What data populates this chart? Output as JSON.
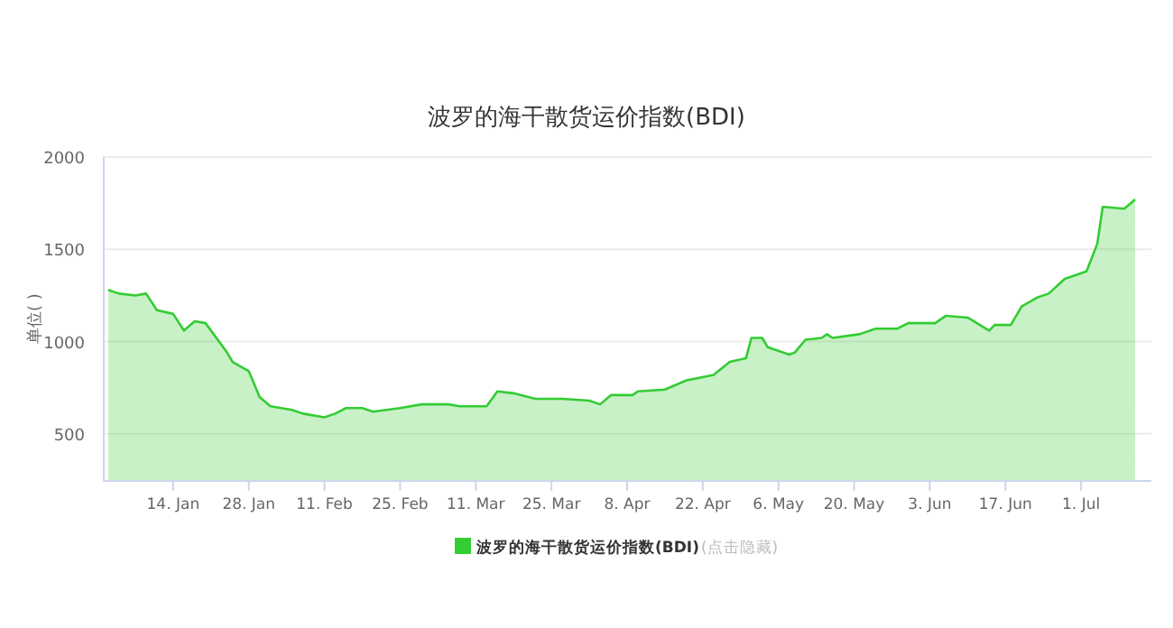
{
  "chart_data": {
    "type": "area",
    "title": "波罗的海干散货运价指数(BDI)",
    "ylabel": "单位( )",
    "x": [
      "--01-02",
      "--01-04",
      "--01-07",
      "--01-09",
      "--01-11",
      "--01-14",
      "--01-16",
      "--01-18",
      "--01-20",
      "--01-24",
      "--01-25",
      "--01-28",
      "--01-30",
      "--02-01",
      "--02-05",
      "--02-07",
      "--02-11",
      "--02-13",
      "--02-15",
      "--02-18",
      "--02-20",
      "--02-25",
      "--03-01",
      "--03-06",
      "--03-08",
      "--03-13",
      "--03-15",
      "--03-18",
      "--03-22",
      "--03-27",
      "--04-01",
      "--04-03",
      "--04-05",
      "--04-09",
      "--04-10",
      "--04-15",
      "--04-19",
      "--04-24",
      "--04-27",
      "--04-30",
      "--05-01",
      "--05-03",
      "--05-04",
      "--05-08",
      "--05-09",
      "--05-11",
      "--05-14",
      "--05-15",
      "--05-16",
      "--05-21",
      "--05-24",
      "--05-28",
      "--05-30",
      "--05-31",
      "--06-04",
      "--06-06",
      "--06-10",
      "--06-14",
      "--06-15",
      "--06-18",
      "--06-20",
      "--06-23",
      "--06-25",
      "--06-28",
      "--07-02",
      "--07-04",
      "--07-05",
      "--07-09",
      "--07-11"
    ],
    "series": [
      {
        "name": "波罗的海干散货运价指数(BDI)",
        "color": "#33cc33",
        "values": [
          1280,
          1260,
          1250,
          1260,
          1170,
          1150,
          1060,
          1110,
          1100,
          940,
          890,
          840,
          700,
          650,
          630,
          610,
          590,
          610,
          640,
          640,
          620,
          640,
          660,
          660,
          650,
          650,
          730,
          720,
          690,
          690,
          680,
          660,
          710,
          710,
          730,
          740,
          790,
          820,
          890,
          910,
          1020,
          1020,
          970,
          930,
          940,
          1010,
          1020,
          1040,
          1020,
          1040,
          1070,
          1070,
          1100,
          1100,
          1100,
          1140,
          1130,
          1060,
          1090,
          1090,
          1190,
          1240,
          1260,
          1340,
          1380,
          1530,
          1730,
          1720,
          1770
        ]
      }
    ],
    "xlim": [
      "--01-01",
      "--07-14"
    ],
    "xticks": [
      {
        "value": "--01-14",
        "label": "14. Jan"
      },
      {
        "value": "--01-28",
        "label": "28. Jan"
      },
      {
        "value": "--02-11",
        "label": "11. Feb"
      },
      {
        "value": "--02-25",
        "label": "25. Feb"
      },
      {
        "value": "--03-11",
        "label": "11. Mar"
      },
      {
        "value": "--03-25",
        "label": "25. Mar"
      },
      {
        "value": "--04-08",
        "label": "8. Apr"
      },
      {
        "value": "--04-22",
        "label": "22. Apr"
      },
      {
        "value": "--05-06",
        "label": "6. May"
      },
      {
        "value": "--05-20",
        "label": "20. May"
      },
      {
        "value": "--06-03",
        "label": "3. Jun"
      },
      {
        "value": "--06-17",
        "label": "17. Jun"
      },
      {
        "value": "--07-01",
        "label": "1. Jul"
      }
    ],
    "ylim": [
      250,
      2000
    ],
    "yticks": [
      500,
      1000,
      1500,
      2000
    ],
    "grid": "y",
    "legend": "bottom",
    "annotations": [
      "(点击隐藏)"
    ]
  }
}
